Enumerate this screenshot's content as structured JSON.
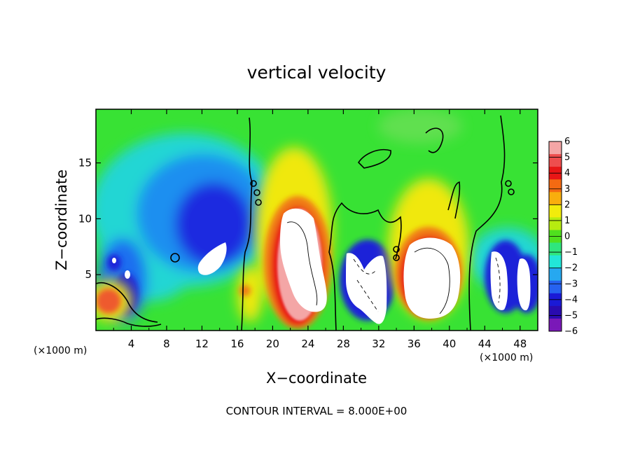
{
  "chart_data": {
    "type": "heatmap",
    "title": "vertical velocity",
    "xlabel": "X−coordinate",
    "ylabel": "Z−coordinate",
    "x_unit_left": "(×1000 m)",
    "x_unit_right": "(×1000 m)",
    "xlim": [
      0,
      50
    ],
    "ylim": [
      0,
      19.8
    ],
    "x_ticks": [
      4,
      8,
      12,
      16,
      20,
      24,
      28,
      32,
      36,
      40,
      44,
      48
    ],
    "y_ticks": [
      5,
      10,
      15
    ],
    "colorbar": {
      "ticks": [
        "6",
        "5",
        "4",
        "3",
        "2",
        "1",
        "0",
        "−1",
        "−2",
        "−3",
        "−4",
        "−5",
        "−6"
      ],
      "range": [
        -6,
        6
      ],
      "colors": [
        "#f4a6a6",
        "#ee4e4e",
        "#e81616",
        "#f46a12",
        "#f9ae0d",
        "#f2ec0c",
        "#b7ec10",
        "#4fe01e",
        "#2fe67d",
        "#22e6d8",
        "#26a8f0",
        "#2662f0",
        "#1a1ad6",
        "#2a0bb0",
        "#7a18b8"
      ]
    },
    "features": [
      {
        "kind": "updraft_core",
        "x": 23.2,
        "z": 6.3,
        "rx": 2.7,
        "rz": 5.5
      },
      {
        "kind": "updraft_core",
        "x": 37.8,
        "z": 5.0,
        "rx": 3.0,
        "rz": 4.0
      },
      {
        "kind": "updraft_core",
        "x": 31.0,
        "z": 4.3,
        "rx": 2.2,
        "rz": 3.2
      },
      {
        "kind": "updraft_core",
        "x": 13.4,
        "z": 6.0,
        "rx": 1.8,
        "rz": 1.3
      },
      {
        "kind": "updraft_core",
        "x": 45.8,
        "z": 4.3,
        "rx": 1.2,
        "rz": 2.8
      },
      {
        "kind": "updraft_core",
        "x": 48.2,
        "z": 4.0,
        "rx": 0.8,
        "rz": 2.4
      },
      {
        "kind": "downdraft",
        "x": 12.5,
        "z": 8.5,
        "rx": 4.5,
        "rz": 5.0
      },
      {
        "kind": "downdraft",
        "x": 3.2,
        "z": 5.0,
        "rx": 2.2,
        "rz": 3.5
      }
    ],
    "footer": "CONTOUR INTERVAL = 8.000E+00"
  }
}
